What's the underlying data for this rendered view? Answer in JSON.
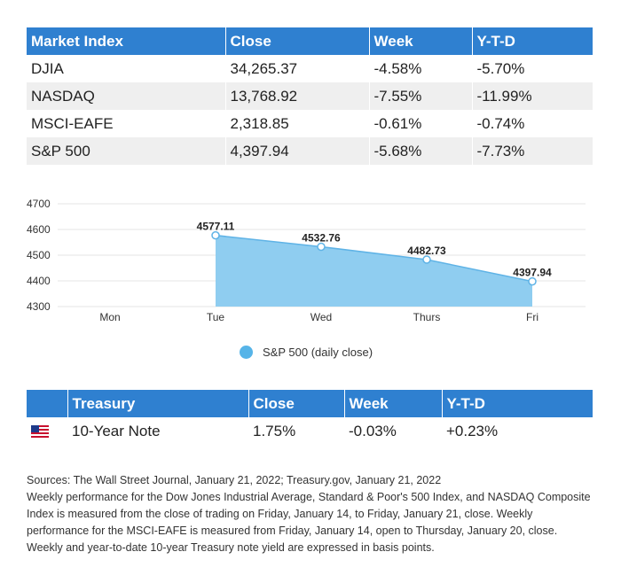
{
  "index_table": {
    "headers": [
      "Market Index",
      "Close",
      "Week",
      "Y-T-D"
    ],
    "rows": [
      [
        "DJIA",
        "34,265.37",
        "-4.58%",
        "-5.70%"
      ],
      [
        "NASDAQ",
        "13,768.92",
        "-7.55%",
        "-11.99%"
      ],
      [
        "MSCI-EAFE",
        "2,318.85",
        "-0.61%",
        "-0.74%"
      ],
      [
        "S&P 500",
        "4,397.94",
        "-5.68%",
        "-7.73%"
      ]
    ],
    "header_color": "#2f80d0"
  },
  "chart_data": {
    "type": "area",
    "categories": [
      "Mon",
      "Tue",
      "Wed",
      "Thurs",
      "Fri"
    ],
    "series": [
      {
        "name": "S&P 500 (daily close)",
        "values": [
          null,
          4577.11,
          4532.76,
          4482.73,
          4397.94
        ],
        "labels": [
          "",
          "4577.11",
          "4532.76",
          "4482.73",
          "4397.94"
        ],
        "color": "#8fcdf0"
      }
    ],
    "yticks": [
      "4700",
      "4600",
      "4500",
      "4400",
      "4300"
    ],
    "ylim": [
      4300,
      4700
    ],
    "grid": true,
    "legend": "bottom"
  },
  "legend": {
    "label": "S&P 500 (daily close)"
  },
  "treasury_table": {
    "headers": [
      "",
      "Treasury",
      "Close",
      "Week",
      "Y-T-D"
    ],
    "rows": [
      [
        "us-flag-icon",
        "10-Year Note",
        "1.75%",
        "-0.03%",
        "+0.23%"
      ]
    ]
  },
  "notes": {
    "sources": "Sources: The Wall Street Journal, January 21, 2022; Treasury.gov, January 21, 2022",
    "body": "Weekly performance for the Dow Jones Industrial Average, Standard & Poor's 500 Index, and NASDAQ Composite Index is measured from the close of trading on Friday, January 14, to Friday, January 21, close. Weekly performance for the MSCI-EAFE is measured from Friday, January 14, open to Thursday, January 20, close. Weekly and year-to-date 10-year Treasury note yield are expressed in basis points."
  }
}
